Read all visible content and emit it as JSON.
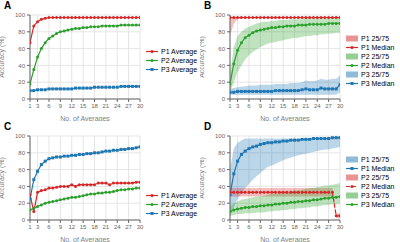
{
  "chart_data": [
    {
      "type": "line",
      "title": "A",
      "xlabel": "No. of Averages",
      "ylabel": "Accuracy (%)",
      "x": [
        1,
        2,
        3,
        4,
        5,
        6,
        7,
        8,
        9,
        10,
        11,
        12,
        13,
        14,
        15,
        16,
        17,
        18,
        19,
        20,
        21,
        22,
        23,
        24,
        25,
        26,
        27,
        28,
        29,
        30
      ],
      "xlim": [
        1,
        30
      ],
      "ylim": [
        0,
        100
      ],
      "xticks": [
        1,
        3,
        6,
        9,
        12,
        15,
        18,
        21,
        24,
        27,
        30
      ],
      "yticks": [
        0,
        20,
        40,
        60,
        80,
        100
      ],
      "grid": true,
      "legend": "right",
      "series": [
        {
          "name": "P1 Average",
          "type": "line",
          "color": "#d62728",
          "marker": "circle",
          "values": [
            67,
            87,
            92,
            95,
            96,
            97,
            97,
            97,
            97,
            97,
            97,
            97,
            97,
            97,
            97,
            97,
            97,
            97,
            97,
            97,
            97,
            97,
            97,
            97,
            97,
            97,
            97,
            97,
            97,
            97
          ]
        },
        {
          "name": "P2 Average",
          "type": "line",
          "color": "#2ca02c",
          "marker": "circle",
          "values": [
            18,
            35,
            50,
            60,
            67,
            72,
            75,
            78,
            80,
            81,
            82,
            83,
            84,
            84,
            85,
            85,
            86,
            86,
            86,
            87,
            87,
            87,
            87,
            87,
            88,
            88,
            88,
            88,
            88,
            88
          ]
        },
        {
          "name": "P3 Average",
          "type": "line",
          "color": "#1f77b4",
          "marker": "square",
          "values": [
            10,
            10,
            11,
            11,
            11,
            12,
            12,
            12,
            12,
            12,
            12,
            12,
            13,
            13,
            13,
            13,
            13,
            14,
            14,
            14,
            14,
            14,
            14,
            14,
            15,
            15,
            15,
            15,
            15,
            15
          ]
        }
      ]
    },
    {
      "type": "line",
      "title": "B",
      "xlabel": "No. of Averages",
      "ylabel": "Accuracy (%)",
      "x": [
        1,
        2,
        3,
        4,
        5,
        6,
        7,
        8,
        9,
        10,
        11,
        12,
        13,
        14,
        15,
        16,
        17,
        18,
        19,
        20,
        21,
        22,
        23,
        24,
        25,
        26,
        27,
        28,
        29,
        30
      ],
      "xlim": [
        1,
        30
      ],
      "ylim": [
        0,
        100
      ],
      "xticks": [
        1,
        3,
        6,
        9,
        12,
        15,
        18,
        21,
        24,
        27,
        30
      ],
      "yticks": [
        0,
        20,
        40,
        60,
        80,
        100
      ],
      "grid": true,
      "legend": "right",
      "series": [
        {
          "name": "P1 25/75",
          "type": "band",
          "color": "#d62728",
          "lower": [
            75,
            90,
            95,
            97,
            97,
            97,
            97,
            97,
            97,
            97,
            97,
            97,
            97,
            97,
            97,
            97,
            97,
            97,
            97,
            97,
            97,
            97,
            97,
            97,
            97,
            97,
            97,
            97,
            97,
            97
          ],
          "upper": [
            97,
            97,
            97,
            97,
            97,
            97,
            97,
            97,
            97,
            97,
            97,
            97,
            97,
            97,
            97,
            97,
            97,
            97,
            97,
            97,
            97,
            97,
            97,
            97,
            97,
            97,
            97,
            97,
            97,
            97
          ]
        },
        {
          "name": "P1 Median",
          "type": "line",
          "color": "#d62728",
          "marker": "circle",
          "values": [
            97,
            97,
            97,
            97,
            97,
            97,
            97,
            97,
            97,
            97,
            97,
            97,
            97,
            97,
            97,
            97,
            97,
            97,
            97,
            97,
            97,
            97,
            97,
            97,
            97,
            97,
            97,
            97,
            97,
            97
          ]
        },
        {
          "name": "P2 25/75",
          "type": "band",
          "color": "#2ca02c",
          "lower": [
            8,
            20,
            32,
            40,
            47,
            52,
            56,
            59,
            62,
            64,
            66,
            67,
            68,
            69,
            70,
            71,
            72,
            73,
            73,
            74,
            75,
            75,
            76,
            76,
            77,
            77,
            78,
            78,
            79,
            79
          ],
          "upper": [
            28,
            62,
            75,
            80,
            84,
            86,
            88,
            90,
            91,
            92,
            92,
            93,
            93,
            94,
            94,
            94,
            95,
            95,
            95,
            95,
            96,
            96,
            96,
            96,
            96,
            96,
            96,
            97,
            97,
            97
          ]
        },
        {
          "name": "P2 Median",
          "type": "line",
          "color": "#2ca02c",
          "marker": "circle",
          "values": [
            18,
            42,
            58,
            67,
            73,
            76,
            79,
            81,
            82,
            83,
            84,
            85,
            85,
            86,
            86,
            87,
            87,
            87,
            88,
            88,
            88,
            89,
            89,
            89,
            89,
            89,
            90,
            90,
            90,
            90
          ]
        },
        {
          "name": "P3 25/75",
          "type": "band",
          "color": "#1f77b4",
          "lower": [
            5,
            5,
            5,
            5,
            5,
            5,
            5,
            5,
            5,
            5,
            5,
            5,
            5,
            5,
            5,
            5,
            5,
            5,
            5,
            5,
            5,
            5,
            5,
            5,
            5,
            5,
            5,
            5,
            5,
            8
          ],
          "upper": [
            12,
            13,
            14,
            15,
            15,
            16,
            16,
            16,
            17,
            17,
            17,
            17,
            18,
            18,
            18,
            18,
            19,
            19,
            19,
            20,
            22,
            21,
            21,
            22,
            24,
            23,
            23,
            24,
            24,
            28
          ]
        },
        {
          "name": "P3 Median",
          "type": "line",
          "color": "#1f77b4",
          "marker": "square",
          "values": [
            8,
            8,
            9,
            9,
            9,
            9,
            9,
            9,
            9,
            9,
            9,
            9,
            10,
            10,
            10,
            10,
            10,
            10,
            10,
            11,
            12,
            11,
            11,
            11,
            13,
            12,
            12,
            12,
            12,
            17
          ]
        }
      ]
    },
    {
      "type": "line",
      "title": "C",
      "xlabel": "No. of Averages",
      "ylabel": "Accuracy (%)",
      "x": [
        1,
        2,
        3,
        4,
        5,
        6,
        7,
        8,
        9,
        10,
        11,
        12,
        13,
        14,
        15,
        16,
        17,
        18,
        19,
        20,
        21,
        22,
        23,
        24,
        25,
        26,
        27,
        28,
        29,
        30
      ],
      "xlim": [
        1,
        30
      ],
      "ylim": [
        0,
        100
      ],
      "xticks": [
        1,
        3,
        6,
        9,
        12,
        15,
        18,
        21,
        24,
        27,
        30
      ],
      "yticks": [
        0,
        20,
        40,
        60,
        80,
        100
      ],
      "grid": true,
      "legend": "lower right",
      "series": [
        {
          "name": "P1 Average",
          "type": "line",
          "color": "#d62728",
          "marker": "circle",
          "values": [
            30,
            10,
            33,
            35,
            36,
            38,
            38,
            39,
            40,
            40,
            40,
            42,
            40,
            42,
            42,
            42,
            42,
            42,
            44,
            44,
            44,
            42,
            44,
            44,
            44,
            44,
            44,
            44,
            45,
            45
          ]
        },
        {
          "name": "P2 Average",
          "type": "line",
          "color": "#2ca02c",
          "marker": "circle",
          "values": [
            12,
            14,
            16,
            18,
            20,
            21,
            22,
            23,
            24,
            25,
            26,
            27,
            27,
            28,
            29,
            30,
            31,
            31,
            32,
            32,
            33,
            33,
            34,
            35,
            36,
            36,
            37,
            37,
            38,
            38
          ]
        },
        {
          "name": "P3 Average",
          "type": "line",
          "color": "#1f77b4",
          "marker": "square",
          "values": [
            25,
            48,
            58,
            66,
            70,
            73,
            74,
            75,
            75,
            76,
            76,
            77,
            77,
            78,
            78,
            79,
            79,
            80,
            80,
            81,
            82,
            82,
            83,
            83,
            84,
            84,
            85,
            85,
            86,
            87
          ]
        }
      ]
    },
    {
      "type": "line",
      "title": "D",
      "xlabel": "No. of Averages",
      "ylabel": "Accuracy (%)",
      "x": [
        1,
        2,
        3,
        4,
        5,
        6,
        7,
        8,
        9,
        10,
        11,
        12,
        13,
        14,
        15,
        16,
        17,
        18,
        19,
        20,
        21,
        22,
        23,
        24,
        25,
        26,
        27,
        28,
        29,
        30
      ],
      "xlim": [
        1,
        30
      ],
      "ylim": [
        0,
        100
      ],
      "xticks": [
        1,
        3,
        6,
        9,
        12,
        15,
        18,
        21,
        24,
        27,
        30
      ],
      "yticks": [
        0,
        20,
        40,
        60,
        80,
        100
      ],
      "grid": true,
      "legend": "right",
      "series": [
        {
          "name": "P1 25/75",
          "type": "band",
          "color": "#1f77b4",
          "lower": [
            5,
            15,
            25,
            32,
            38,
            43,
            48,
            52,
            56,
            60,
            63,
            65,
            67,
            69,
            71,
            73,
            74,
            76,
            77,
            78,
            79,
            80,
            81,
            82,
            83,
            84,
            84,
            85,
            86,
            87
          ],
          "upper": [
            60,
            85,
            92,
            95,
            97,
            97,
            97,
            97,
            97,
            97,
            97,
            97,
            97,
            97,
            97,
            97,
            97,
            97,
            97,
            97,
            97,
            97,
            97,
            97,
            97,
            97,
            97,
            97,
            98,
            98
          ]
        },
        {
          "name": "P1 Median",
          "type": "line",
          "color": "#1f77b4",
          "marker": "square",
          "values": [
            30,
            55,
            70,
            78,
            82,
            85,
            87,
            88,
            90,
            91,
            92,
            92,
            93,
            93,
            94,
            94,
            95,
            95,
            95,
            96,
            96,
            96,
            97,
            97,
            97,
            97,
            97,
            98,
            98,
            98
          ]
        },
        {
          "name": "P2 25/75",
          "type": "band",
          "color": "#d62728",
          "lower": [
            28,
            28,
            28,
            28,
            28,
            28,
            28,
            28,
            28,
            28,
            28,
            28,
            28,
            28,
            28,
            28,
            28,
            28,
            28,
            28,
            28,
            28,
            28,
            28,
            28,
            28,
            28,
            28,
            2,
            2
          ],
          "upper": [
            38,
            38,
            38,
            38,
            38,
            38,
            38,
            38,
            38,
            38,
            38,
            38,
            38,
            38,
            38,
            38,
            38,
            38,
            38,
            38,
            38,
            38,
            38,
            38,
            38,
            38,
            38,
            38,
            8,
            8
          ]
        },
        {
          "name": "P2 Median",
          "type": "line",
          "color": "#d62728",
          "marker": "circle",
          "line_style": "dashed",
          "values": [
            33,
            33,
            33,
            33,
            33,
            33,
            33,
            33,
            33,
            33,
            33,
            33,
            33,
            33,
            33,
            33,
            33,
            33,
            33,
            33,
            33,
            33,
            33,
            33,
            33,
            33,
            33,
            33,
            5,
            5
          ]
        },
        {
          "name": "P3 25/75",
          "type": "band",
          "color": "#2ca02c",
          "lower": [
            5,
            6,
            7,
            7,
            8,
            8,
            8,
            9,
            9,
            9,
            10,
            10,
            11,
            11,
            12,
            12,
            13,
            13,
            14,
            14,
            15,
            15,
            16,
            16,
            17,
            18,
            18,
            19,
            19,
            20
          ],
          "upper": [
            16,
            20,
            22,
            24,
            25,
            26,
            27,
            28,
            28,
            29,
            30,
            31,
            31,
            32,
            33,
            33,
            34,
            35,
            35,
            36,
            37,
            38,
            38,
            39,
            40,
            41,
            41,
            42,
            43,
            44
          ]
        },
        {
          "name": "P3 Median",
          "type": "line",
          "color": "#2ca02c",
          "marker": "circle",
          "values": [
            10,
            12,
            13,
            14,
            15,
            15,
            16,
            16,
            17,
            17,
            18,
            18,
            19,
            19,
            20,
            20,
            21,
            21,
            22,
            22,
            23,
            23,
            24,
            24,
            25,
            26,
            26,
            27,
            27,
            28
          ]
        }
      ]
    }
  ]
}
